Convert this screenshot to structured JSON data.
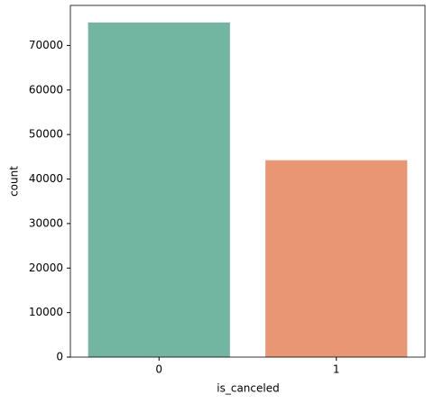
{
  "chart_data": {
    "type": "bar",
    "x_label": "is_canceled",
    "y_label": "count",
    "categories": [
      "0",
      "1"
    ],
    "values": [
      75166,
      44224
    ],
    "colors": [
      "#72b6a1",
      "#e99675"
    ],
    "ylim": [
      0,
      79000
    ],
    "yticks": [
      0,
      10000,
      20000,
      30000,
      40000,
      50000,
      60000,
      70000
    ],
    "grid": false
  }
}
